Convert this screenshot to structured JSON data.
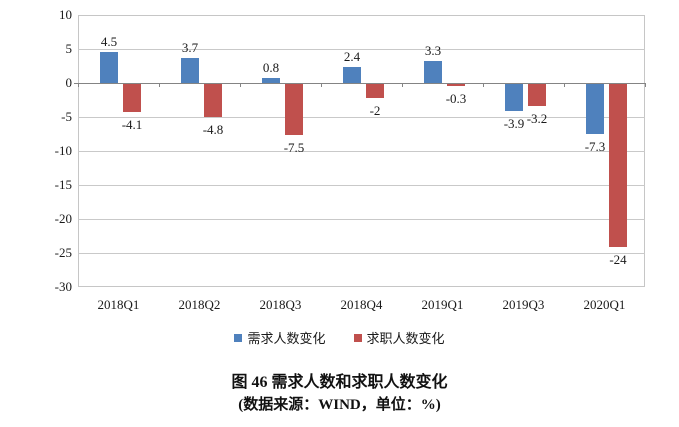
{
  "chart_data": {
    "type": "bar",
    "categories": [
      "2018Q1",
      "2018Q2",
      "2018Q3",
      "2018Q4",
      "2019Q1",
      "2019Q3",
      "2020Q1"
    ],
    "series": [
      {
        "name": "需求人数变化",
        "color": "#4F81BD",
        "values": [
          4.5,
          3.7,
          0.8,
          2.4,
          3.3,
          -3.9,
          -7.3
        ]
      },
      {
        "name": "求职人数变化",
        "color": "#C0504D",
        "values": [
          -4.1,
          -4.8,
          -7.5,
          -2,
          -0.3,
          -3.2,
          -24
        ]
      }
    ],
    "data_labels_visible": true,
    "ylim": [
      -30,
      10
    ],
    "yticks": [
      10,
      5,
      0,
      -5,
      -10,
      -15,
      -20,
      -25,
      -30
    ],
    "grid": true,
    "legend_position": "bottom",
    "xlabel": "",
    "ylabel": ""
  },
  "caption": {
    "title": "图 46 需求人数和求职人数变化",
    "subtitle": "(数据来源：WIND，单位：%)"
  },
  "colors": {
    "bar_blue": "#4F81BD",
    "bar_red": "#C0504D",
    "gridline": "#c9c9c9",
    "axis_line": "#848484",
    "text": "#1a1a1a"
  }
}
